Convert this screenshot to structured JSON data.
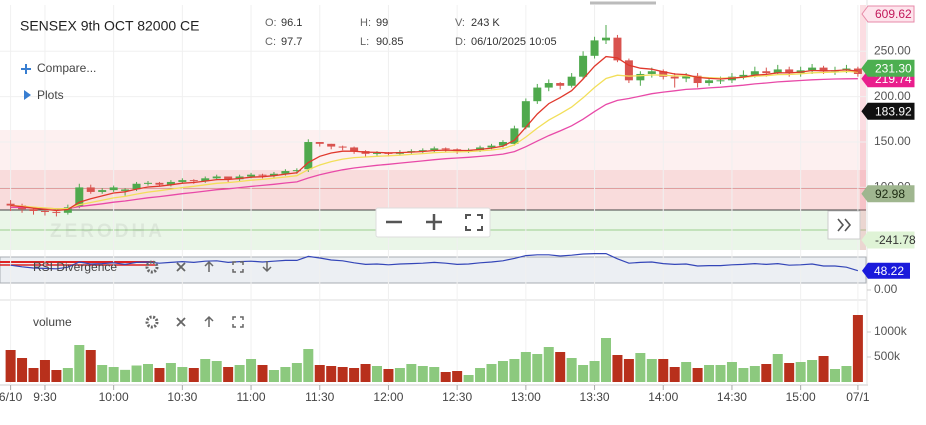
{
  "chart_data": [
    {
      "type": "candlestick",
      "title": "SENSEX 9th OCT 82000 CE",
      "info": [
        {
          "label": "O:",
          "value": 96.1
        },
        {
          "label": "H:",
          "value": 99
        },
        {
          "label": "V:",
          "value": 243000,
          "value_label": "243 K"
        },
        {
          "label": "C:",
          "value": 97.7
        },
        {
          "label": "L:",
          "value": 90.85
        },
        {
          "label": "D:",
          "value": "06/10/2025 10:05"
        }
      ],
      "controls": [
        "Compare...",
        "Plots"
      ],
      "watermark": "ZERODHA",
      "categories": [
        "6/10",
        null,
        null,
        "9:30",
        null,
        null,
        null,
        null,
        null,
        "10:00",
        null,
        null,
        null,
        null,
        null,
        "10:30",
        null,
        null,
        null,
        null,
        null,
        "11:00",
        null,
        null,
        null,
        null,
        null,
        "11:30",
        null,
        null,
        null,
        null,
        null,
        "12:00",
        null,
        null,
        null,
        null,
        null,
        "12:30",
        null,
        null,
        null,
        null,
        null,
        "13:00",
        null,
        null,
        null,
        null,
        null,
        "13:30",
        null,
        null,
        null,
        null,
        null,
        "14:00",
        null,
        null,
        null,
        null,
        null,
        "14:30",
        null,
        null,
        null,
        null,
        null,
        "15:00",
        null,
        null,
        null,
        null,
        "07/1"
      ],
      "open": [
        82,
        80,
        76,
        74,
        73,
        72,
        79,
        100,
        95,
        97,
        96.1,
        98,
        104,
        105,
        103,
        106,
        108,
        107,
        110,
        112,
        109,
        112,
        114,
        113,
        115,
        118,
        120,
        150,
        148,
        145,
        144,
        140,
        137,
        138,
        137,
        139,
        140,
        141,
        143,
        142,
        140,
        141,
        144,
        146,
        148,
        166,
        195,
        210,
        215,
        212,
        222,
        245,
        262,
        265,
        240,
        218,
        225,
        228,
        222,
        220,
        223,
        215,
        218,
        218,
        222,
        224,
        228,
        226,
        230,
        226,
        229,
        232,
        228,
        229,
        231
      ],
      "high": [
        86,
        82,
        78,
        77,
        76,
        81,
        104,
        103,
        99,
        102,
        99,
        106,
        107,
        106,
        108,
        110,
        109,
        112,
        114,
        112,
        114,
        116,
        115,
        117,
        120,
        121,
        153,
        150,
        148,
        146,
        145,
        141,
        140,
        139,
        141,
        142,
        143,
        145,
        144,
        143,
        143,
        146,
        148,
        152,
        168,
        198,
        214,
        219,
        216,
        226,
        250,
        266,
        279,
        268,
        242,
        228,
        232,
        230,
        226,
        226,
        226,
        220,
        222,
        226,
        229,
        233,
        232,
        235,
        233,
        233,
        236,
        234,
        233,
        235,
        233
      ],
      "low": [
        74,
        72,
        70,
        69,
        68,
        70,
        77,
        93,
        93,
        95,
        90.85,
        96,
        102,
        101,
        101,
        104,
        104,
        105,
        108,
        106,
        107,
        110,
        110,
        111,
        113,
        115,
        117,
        145,
        142,
        141,
        137,
        134,
        135,
        134,
        135,
        137,
        138,
        139,
        139,
        137,
        138,
        139,
        142,
        144,
        146,
        164,
        192,
        206,
        208,
        210,
        220,
        242,
        258,
        238,
        215,
        212,
        221,
        219,
        210,
        216,
        210,
        212,
        214,
        215,
        219,
        221,
        222,
        224,
        222,
        222,
        225,
        225,
        224,
        226,
        222
      ],
      "close": [
        80,
        76,
        74,
        73,
        72,
        78,
        100,
        95,
        97,
        100,
        97.7,
        104,
        105,
        103,
        106,
        108,
        107,
        110,
        112,
        109,
        112,
        114,
        113,
        115,
        118,
        119,
        150,
        148,
        145,
        144,
        140,
        137,
        138,
        137,
        139,
        140,
        141,
        143,
        142,
        140,
        141,
        144,
        146,
        150,
        165,
        195,
        210,
        215,
        212,
        222,
        245,
        262,
        265,
        240,
        218,
        225,
        228,
        222,
        220,
        223,
        215,
        218,
        218,
        222,
        224,
        228,
        226,
        230,
        226,
        229,
        232,
        228,
        229,
        231,
        225
      ],
      "up_color": "#4fa94d",
      "down_color": "#d9534f",
      "overlays": [
        {
          "color": "#e84aa8",
          "values": [
            78,
            77.8,
            77.4,
            76.9,
            76.4,
            76.6,
            78.8,
            80.4,
            81.9,
            83.7,
            85,
            86.8,
            88.5,
            89.9,
            91.4,
            93,
            94.4,
            95.9,
            97.4,
            98.5,
            99.8,
            101.1,
            102.2,
            103.4,
            104.8,
            106.1,
            110.3,
            113.9,
            116.8,
            119.4,
            121.4,
            122.9,
            124.3,
            125.5,
            126.8,
            128,
            129.2,
            130.5,
            131.6,
            132.4,
            133.2,
            134.2,
            135.3,
            136.7,
            139.4,
            144.8,
            151,
            157.1,
            162.3,
            167.9,
            175.2,
            183.5,
            191.3,
            195.9,
            198,
            200.6,
            203.2,
            205,
            206.4,
            208,
            208.7,
            209.6,
            210.4,
            211.5,
            212.6,
            214.1,
            215,
            216.2,
            217,
            217.8,
            218.6,
            219,
            219.4,
            219.7,
            219.74
          ]
        },
        {
          "color": "#f2df5a",
          "values": [
            80,
            79.3,
            78.3,
            77.4,
            76.4,
            76.7,
            80.9,
            83.4,
            85.9,
            88.4,
            90.1,
            92.6,
            94.8,
            96.3,
            98.1,
            99.9,
            101.2,
            102.8,
            104.5,
            105.3,
            106.5,
            107.9,
            108.8,
            110.1,
            111.5,
            112.9,
            119.6,
            124.7,
            128.4,
            131.2,
            132.8,
            133.5,
            134.3,
            134.8,
            135.5,
            136.3,
            137.2,
            138.2,
            138.9,
            139.1,
            139.4,
            140.2,
            141.2,
            142.8,
            146.8,
            155.5,
            165.3,
            174.2,
            181.1,
            188.5,
            198.7,
            210.1,
            220,
            223.6,
            222.6,
            223.1,
            224,
            223.6,
            222.9,
            222.9,
            221.5,
            220.9,
            220.4,
            220.7,
            221.3,
            222.5,
            223.1,
            224.3,
            224.4,
            225.2,
            226.3,
            226.6,
            227,
            227.7,
            227.2
          ]
        },
        {
          "color": "#e0382c",
          "values": [
            80,
            78.7,
            77.1,
            75.7,
            74.5,
            75.6,
            83.7,
            87.5,
            90.6,
            93.8,
            95.1,
            98.1,
            100.4,
            101.3,
            102.9,
            104.6,
            105.4,
            106.9,
            108.6,
            108.7,
            109.8,
            111.2,
            111.8,
            112.9,
            114.6,
            116.1,
            127.4,
            134.3,
            137.9,
            139.9,
            139.9,
            138.9,
            138.6,
            138,
            138.3,
            138.9,
            139.6,
            140.7,
            141.1,
            140.7,
            140.8,
            141.9,
            143.3,
            145.5,
            152,
            166.3,
            180.9,
            192.3,
            198.9,
            206.6,
            219.4,
            233.6,
            244.1,
            242.7,
            234.5,
            231.3,
            230.2,
            227.5,
            225,
            224.3,
            221.2,
            220.1,
            219.4,
            220.3,
            221.5,
            223.7,
            224.5,
            226.3,
            226.2,
            227.1,
            228.8,
            228.5,
            228.7,
            229.5,
            228
          ]
        }
      ],
      "ylim": [
        31,
        301
      ],
      "yticks": [
        {
          "value": 100,
          "label": "100.00"
        },
        {
          "value": 150,
          "label": "150.00"
        },
        {
          "value": 200,
          "label": "200.00"
        },
        {
          "value": 250,
          "label": "250.00"
        }
      ],
      "grid": true,
      "price_labels": [
        {
          "value": 609.62,
          "label": "609.62",
          "color": "#fde4ec",
          "text_color": "#c2185b"
        },
        {
          "value": 219.74,
          "label": "219.74",
          "color": "#e91e8c",
          "text_color": "#ffffff"
        },
        {
          "value": 231.3,
          "label": "231.30",
          "color": "#4caf50",
          "text_color": "#ffffff"
        },
        {
          "value": 183.92,
          "label": "183.92",
          "color": "#111111",
          "text_color": "#ffffff"
        },
        {
          "value": 92.98,
          "label": "92.98",
          "color": "#9fb68f",
          "text_color": "#1d2b12"
        },
        {
          "value": -241.78,
          "label": "-241.78",
          "color": "#dff3d6",
          "text_color": "#333333"
        }
      ]
    },
    {
      "type": "line",
      "title": "RSI Divergence",
      "color": "#3446b8",
      "values": [
        62,
        58,
        55,
        54,
        53,
        57,
        70,
        65,
        66,
        68,
        64,
        69,
        70,
        67,
        69,
        71,
        69,
        72,
        73,
        69,
        71,
        72,
        70,
        72,
        74,
        74,
        84,
        80,
        75,
        73,
        68,
        64,
        65,
        63,
        65,
        66,
        67,
        69,
        67,
        64,
        65,
        68,
        70,
        73,
        79,
        86,
        88,
        88,
        85,
        87,
        90,
        91,
        91,
        78,
        67,
        69,
        70,
        66,
        64,
        65,
        60,
        61,
        61,
        63,
        64,
        66,
        64,
        66,
        62,
        63,
        65,
        60,
        60,
        57,
        48.22
      ],
      "label_color": "#1a1adb",
      "ylim": [
        0,
        100
      ],
      "yticks": [
        {
          "value": 0,
          "label": "0.00"
        }
      ]
    },
    {
      "type": "bar",
      "title": "volume",
      "values": [
        640000,
        480000,
        280000,
        440000,
        240000,
        280000,
        740000,
        640000,
        340000,
        300000,
        243000,
        330000,
        360000,
        280000,
        380000,
        300000,
        280000,
        460000,
        420000,
        300000,
        340000,
        460000,
        340000,
        240000,
        300000,
        380000,
        660000,
        340000,
        320000,
        300000,
        280000,
        360000,
        320000,
        260000,
        280000,
        360000,
        320000,
        300000,
        200000,
        220000,
        140000,
        280000,
        360000,
        420000,
        460000,
        600000,
        560000,
        700000,
        600000,
        480000,
        340000,
        420000,
        880000,
        540000,
        460000,
        580000,
        460000,
        460000,
        300000,
        400000,
        280000,
        340000,
        340000,
        400000,
        280000,
        320000,
        360000,
        560000,
        380000,
        400000,
        440000,
        520000,
        260000,
        320000,
        1340000
      ],
      "up_color": "#8cc97e",
      "down_color": "#b8301c",
      "ylim": [
        0,
        1640000
      ],
      "yticks": [
        {
          "value": 500000,
          "label": "500k"
        },
        {
          "value": 1000000,
          "label": "1000k"
        }
      ]
    }
  ]
}
